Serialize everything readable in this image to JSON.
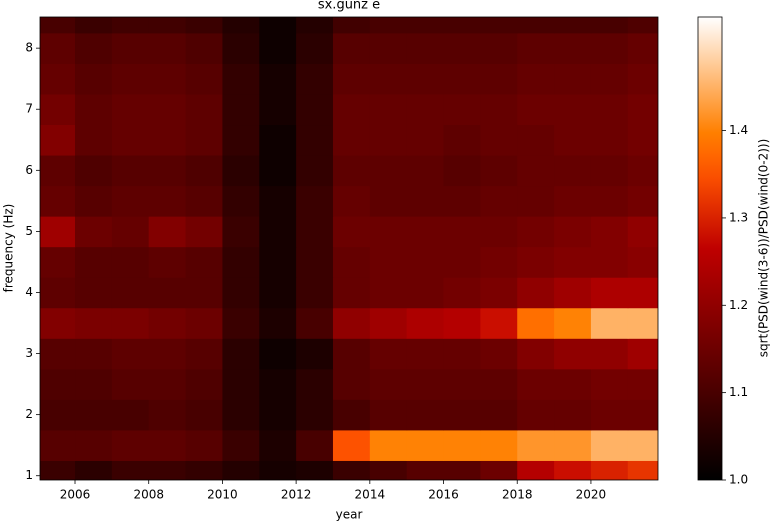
{
  "chart_data": {
    "type": "heatmap",
    "title": "sx.gunz e",
    "xlabel": "year",
    "ylabel": "frequency (Hz)",
    "colorbar_label": "sqrt(PSD(wind(3-6))/PSD(wind(0-2)))",
    "colormap": "gist_heat",
    "x": [
      2005.5,
      2006.5,
      2007.5,
      2008.5,
      2009.5,
      2010.5,
      2011.5,
      2012.5,
      2013.5,
      2014.5,
      2015.5,
      2016.5,
      2017.5,
      2018.5,
      2019.5,
      2020.5,
      2021.5
    ],
    "y": [
      1.0,
      1.5,
      2.0,
      2.5,
      3.0,
      3.5,
      4.0,
      4.5,
      5.0,
      5.5,
      6.0,
      6.5,
      7.0,
      7.5,
      8.0,
      8.5
    ],
    "z": [
      [
        1.08,
        1.06,
        1.08,
        1.08,
        1.07,
        1.05,
        1.03,
        1.04,
        1.08,
        1.1,
        1.12,
        1.12,
        1.15,
        1.25,
        1.28,
        1.3,
        1.32
      ],
      [
        1.12,
        1.12,
        1.13,
        1.13,
        1.12,
        1.08,
        1.04,
        1.1,
        1.35,
        1.4,
        1.4,
        1.4,
        1.4,
        1.42,
        1.42,
        1.45,
        1.45
      ],
      [
        1.1,
        1.1,
        1.1,
        1.11,
        1.1,
        1.06,
        1.03,
        1.06,
        1.1,
        1.12,
        1.12,
        1.12,
        1.12,
        1.14,
        1.14,
        1.15,
        1.15
      ],
      [
        1.11,
        1.11,
        1.12,
        1.12,
        1.11,
        1.06,
        1.03,
        1.06,
        1.12,
        1.13,
        1.13,
        1.13,
        1.13,
        1.15,
        1.15,
        1.16,
        1.16
      ],
      [
        1.12,
        1.12,
        1.13,
        1.13,
        1.12,
        1.06,
        1.02,
        1.04,
        1.12,
        1.14,
        1.14,
        1.14,
        1.15,
        1.18,
        1.2,
        1.2,
        1.22
      ],
      [
        1.18,
        1.17,
        1.17,
        1.16,
        1.15,
        1.08,
        1.04,
        1.1,
        1.2,
        1.22,
        1.24,
        1.25,
        1.28,
        1.38,
        1.4,
        1.45,
        1.45
      ],
      [
        1.13,
        1.12,
        1.12,
        1.12,
        1.12,
        1.07,
        1.03,
        1.08,
        1.14,
        1.15,
        1.15,
        1.16,
        1.17,
        1.2,
        1.22,
        1.24,
        1.24
      ],
      [
        1.14,
        1.12,
        1.12,
        1.13,
        1.12,
        1.07,
        1.03,
        1.08,
        1.14,
        1.15,
        1.15,
        1.15,
        1.16,
        1.17,
        1.18,
        1.18,
        1.19
      ],
      [
        1.22,
        1.15,
        1.14,
        1.18,
        1.16,
        1.08,
        1.03,
        1.08,
        1.15,
        1.15,
        1.15,
        1.15,
        1.15,
        1.16,
        1.17,
        1.18,
        1.2
      ],
      [
        1.14,
        1.12,
        1.13,
        1.13,
        1.12,
        1.07,
        1.03,
        1.08,
        1.14,
        1.13,
        1.13,
        1.13,
        1.14,
        1.14,
        1.15,
        1.15,
        1.16
      ],
      [
        1.13,
        1.11,
        1.12,
        1.12,
        1.11,
        1.06,
        1.02,
        1.07,
        1.13,
        1.13,
        1.13,
        1.12,
        1.13,
        1.14,
        1.14,
        1.14,
        1.15
      ],
      [
        1.18,
        1.13,
        1.14,
        1.14,
        1.13,
        1.07,
        1.02,
        1.07,
        1.14,
        1.14,
        1.14,
        1.13,
        1.14,
        1.14,
        1.15,
        1.15,
        1.16
      ],
      [
        1.16,
        1.13,
        1.14,
        1.14,
        1.13,
        1.07,
        1.03,
        1.07,
        1.14,
        1.14,
        1.14,
        1.14,
        1.14,
        1.15,
        1.15,
        1.15,
        1.16
      ],
      [
        1.14,
        1.12,
        1.13,
        1.13,
        1.12,
        1.07,
        1.03,
        1.07,
        1.13,
        1.13,
        1.13,
        1.13,
        1.13,
        1.14,
        1.14,
        1.14,
        1.15
      ],
      [
        1.13,
        1.11,
        1.12,
        1.12,
        1.11,
        1.06,
        1.02,
        1.06,
        1.12,
        1.12,
        1.12,
        1.12,
        1.12,
        1.13,
        1.13,
        1.13,
        1.14
      ],
      [
        1.1,
        1.08,
        1.09,
        1.09,
        1.08,
        1.05,
        1.02,
        1.05,
        1.09,
        1.1,
        1.1,
        1.1,
        1.1,
        1.1,
        1.1,
        1.1,
        1.11
      ]
    ],
    "xlim": [
      2005.05,
      2021.82
    ],
    "ylim": [
      0.93,
      8.51
    ],
    "clim": [
      1.0,
      1.53
    ],
    "xticks": [
      2006,
      2008,
      2010,
      2012,
      2014,
      2016,
      2018,
      2020
    ],
    "yticks": [
      1,
      2,
      3,
      4,
      5,
      6,
      7,
      8
    ],
    "cticks": [
      {
        "value": 1.0,
        "label": "1.0"
      },
      {
        "value": 1.1,
        "label": "1.1"
      },
      {
        "value": 1.2,
        "label": "1.2"
      },
      {
        "value": 1.3,
        "label": "1.3"
      },
      {
        "value": 1.4,
        "label": "1.4"
      }
    ]
  }
}
